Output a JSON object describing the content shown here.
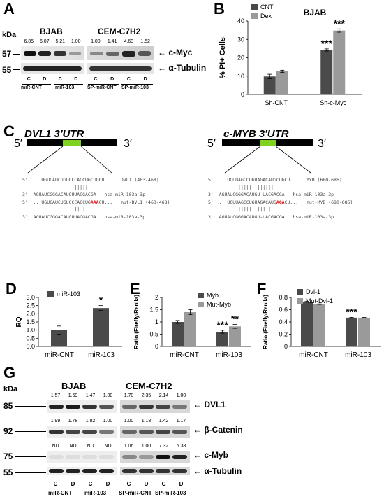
{
  "panels": {
    "A": "A",
    "B": "B",
    "C": "C",
    "D": "D",
    "E": "E",
    "F": "F",
    "G": "G"
  },
  "panelA": {
    "kda": "kDa",
    "cell1": "BJAB",
    "cell2": "CEM-C7H2",
    "mw": [
      "57",
      "55"
    ],
    "vals1": [
      "6.85",
      "6.07",
      "5.21",
      "1.00"
    ],
    "vals2": [
      "1.00",
      "1.41",
      "4.63",
      "1.52"
    ],
    "proteins": [
      "c-Myc",
      "α-Tubulin"
    ],
    "lanes": [
      "C",
      "D",
      "C",
      "D",
      "C",
      "D",
      "C",
      "D"
    ],
    "groups": [
      "miR-CNT",
      "miR-103",
      "SP-miR-CNT",
      "SP-miR-103"
    ]
  },
  "panelB": {
    "chart_data": {
      "type": "bar",
      "title": "BJAB",
      "ylabel": "% PI+ Cells",
      "categories": [
        "Sh-CNT",
        "Sh-c-Myc"
      ],
      "series": [
        {
          "name": "CNT",
          "values": [
            9.8,
            24.2
          ],
          "errors": [
            1.2,
            0.6
          ],
          "color": "#4a4a4a"
        },
        {
          "name": "Dex",
          "values": [
            12.6,
            34.8
          ],
          "errors": [
            0.6,
            0.9
          ],
          "color": "#9a9a9a"
        }
      ],
      "ylim": [
        0,
        40
      ],
      "yticks": [
        "0",
        "10",
        "20",
        "30",
        "40"
      ],
      "annotations": [
        {
          "cat": 1,
          "series": 0,
          "text": "***"
        },
        {
          "cat": 1,
          "series": 1,
          "text": "***"
        }
      ]
    }
  },
  "panelC": {
    "gene1": "DVL1 3′UTR",
    "gene2": "c-MYB 3′UTR",
    "p5": "5′",
    "p3": "3′",
    "dvl": [
      {
        "a": "5'",
        "b": "...UGUCAUCUGUCCCACCUGCUGCU...",
        "c": "DVL1 (463-468)"
      },
      {
        "a": "",
        "b": "              ||||||",
        "c": ""
      },
      {
        "a": "3'",
        "b": "AGUAUCGGGACAUGUUACGACGA",
        "c": "hsa-miR-103a-3p"
      },
      {
        "a": "5'",
        "b": "...UGUCAUCUGUCCCACCUG",
        "r": "AAA",
        "b2": "CU...",
        "c": "mut-DVL1 (463-468)"
      },
      {
        "a": "",
        "b": "              ||| |",
        "c": ""
      },
      {
        "a": "3'",
        "b": "AGUAUCGGGACAUGUUACGACGA",
        "c": "hsa-miR-103a-3p"
      }
    ],
    "myb": [
      {
        "a": "5'",
        "b": "...UCUUAGCCUGUAGACAUGCUGCU...",
        "c": "MYB (680-686)"
      },
      {
        "a": "",
        "b": "       |||||| ||||||",
        "c": ""
      },
      {
        "a": "3'",
        "b": "AGUAUCGGGACAUGU-UACGACGA",
        "c": "hsa-miR-103a-3p"
      },
      {
        "a": "5'",
        "b": "...UCUUAGCCUGUAGACAUG",
        "r": "AGA",
        "b2": "CU...",
        "c": "mut-MYB (680-686)"
      },
      {
        "a": "",
        "b": "       |||||| ||| |",
        "c": ""
      },
      {
        "a": "3'",
        "b": "AGUAUCGGGACAUGU-UACGACGA",
        "c": "hsa-miR-103a-3p"
      }
    ]
  },
  "panelD": {
    "chart_data": {
      "type": "bar",
      "ylabel": "RQ",
      "categories": [
        "miR-CNT",
        "miR-103"
      ],
      "series": [
        {
          "name": "miR-103",
          "values": [
            1.0,
            2.35
          ],
          "errors": [
            0.25,
            0.15
          ],
          "color": "#4a4a4a"
        }
      ],
      "ylim": [
        0,
        3.0
      ],
      "yticks": [
        "0.0",
        "0.5",
        "1.0",
        "1.5",
        "2.0",
        "2.5",
        "3.0"
      ],
      "annotations": [
        {
          "cat": 1,
          "series": 0,
          "text": "*"
        }
      ]
    }
  },
  "panelE": {
    "chart_data": {
      "type": "bar",
      "ylabel": "Ratio (Firefly/Renila)",
      "categories": [
        "miR-CNT",
        "miR-103"
      ],
      "series": [
        {
          "name": "Myb",
          "values": [
            1.0,
            0.6
          ],
          "errors": [
            0.06,
            0.06
          ],
          "color": "#4a4a4a"
        },
        {
          "name": "Mut-Myb",
          "values": [
            1.4,
            0.82
          ],
          "errors": [
            0.1,
            0.08
          ],
          "color": "#9a9a9a"
        }
      ],
      "ylim": [
        0,
        2.0
      ],
      "yticks": [
        "0",
        "0.5",
        "1",
        "1.5",
        "2"
      ],
      "annotations": [
        {
          "cat": 1,
          "series": 0,
          "text": "***"
        },
        {
          "cat": 1,
          "series": 1,
          "text": "**"
        }
      ]
    }
  },
  "panelF": {
    "chart_data": {
      "type": "bar",
      "ylabel": "Ratio (Firefly/Renila)",
      "categories": [
        "miR-CNT",
        "miR-103"
      ],
      "series": [
        {
          "name": "Dvl-1",
          "values": [
            0.73,
            0.47
          ],
          "errors": [
            0.005,
            0.005
          ],
          "color": "#4a4a4a"
        },
        {
          "name": "Mut-Dvl-1",
          "values": [
            0.69,
            0.47
          ],
          "errors": [
            0.005,
            0.005
          ],
          "color": "#9a9a9a"
        }
      ],
      "ylim": [
        0,
        0.8
      ],
      "yticks": [
        "0",
        "0.2",
        "0.4",
        "0.6",
        "0.8"
      ],
      "annotations": [
        {
          "cat": 1,
          "series": 0,
          "text": "***"
        }
      ]
    }
  },
  "panelG": {
    "kda": "kDa",
    "cell1": "BJAB",
    "cell2": "CEM-C7H2",
    "rows": [
      {
        "mw": "85",
        "protein": "DVL1",
        "v1": [
          "1.57",
          "1.69",
          "1.47",
          "1.00"
        ],
        "v2": [
          "1.70",
          "2.35",
          "2.14",
          "1.00"
        ]
      },
      {
        "mw": "92",
        "protein": "β-Catenin",
        "v1": [
          "1.99",
          "1.78",
          "1.82",
          "1.00"
        ],
        "v2": [
          "1.00",
          "1.18",
          "1.42",
          "1.17"
        ]
      },
      {
        "mw": "75",
        "protein": "c-Myb",
        "v1": [
          "ND",
          "ND",
          "ND",
          "ND"
        ],
        "v2": [
          "1.06",
          "1.00",
          "7.32",
          "5.38"
        ]
      },
      {
        "mw": "55",
        "protein": "α-Tubulin",
        "v1": [],
        "v2": []
      }
    ],
    "lanes": [
      "C",
      "D",
      "C",
      "D",
      "C",
      "D",
      "C",
      "D"
    ],
    "groups": [
      "miR-CNT",
      "miR-103",
      "SP-miR-CNT",
      "SP-miR-103"
    ]
  }
}
